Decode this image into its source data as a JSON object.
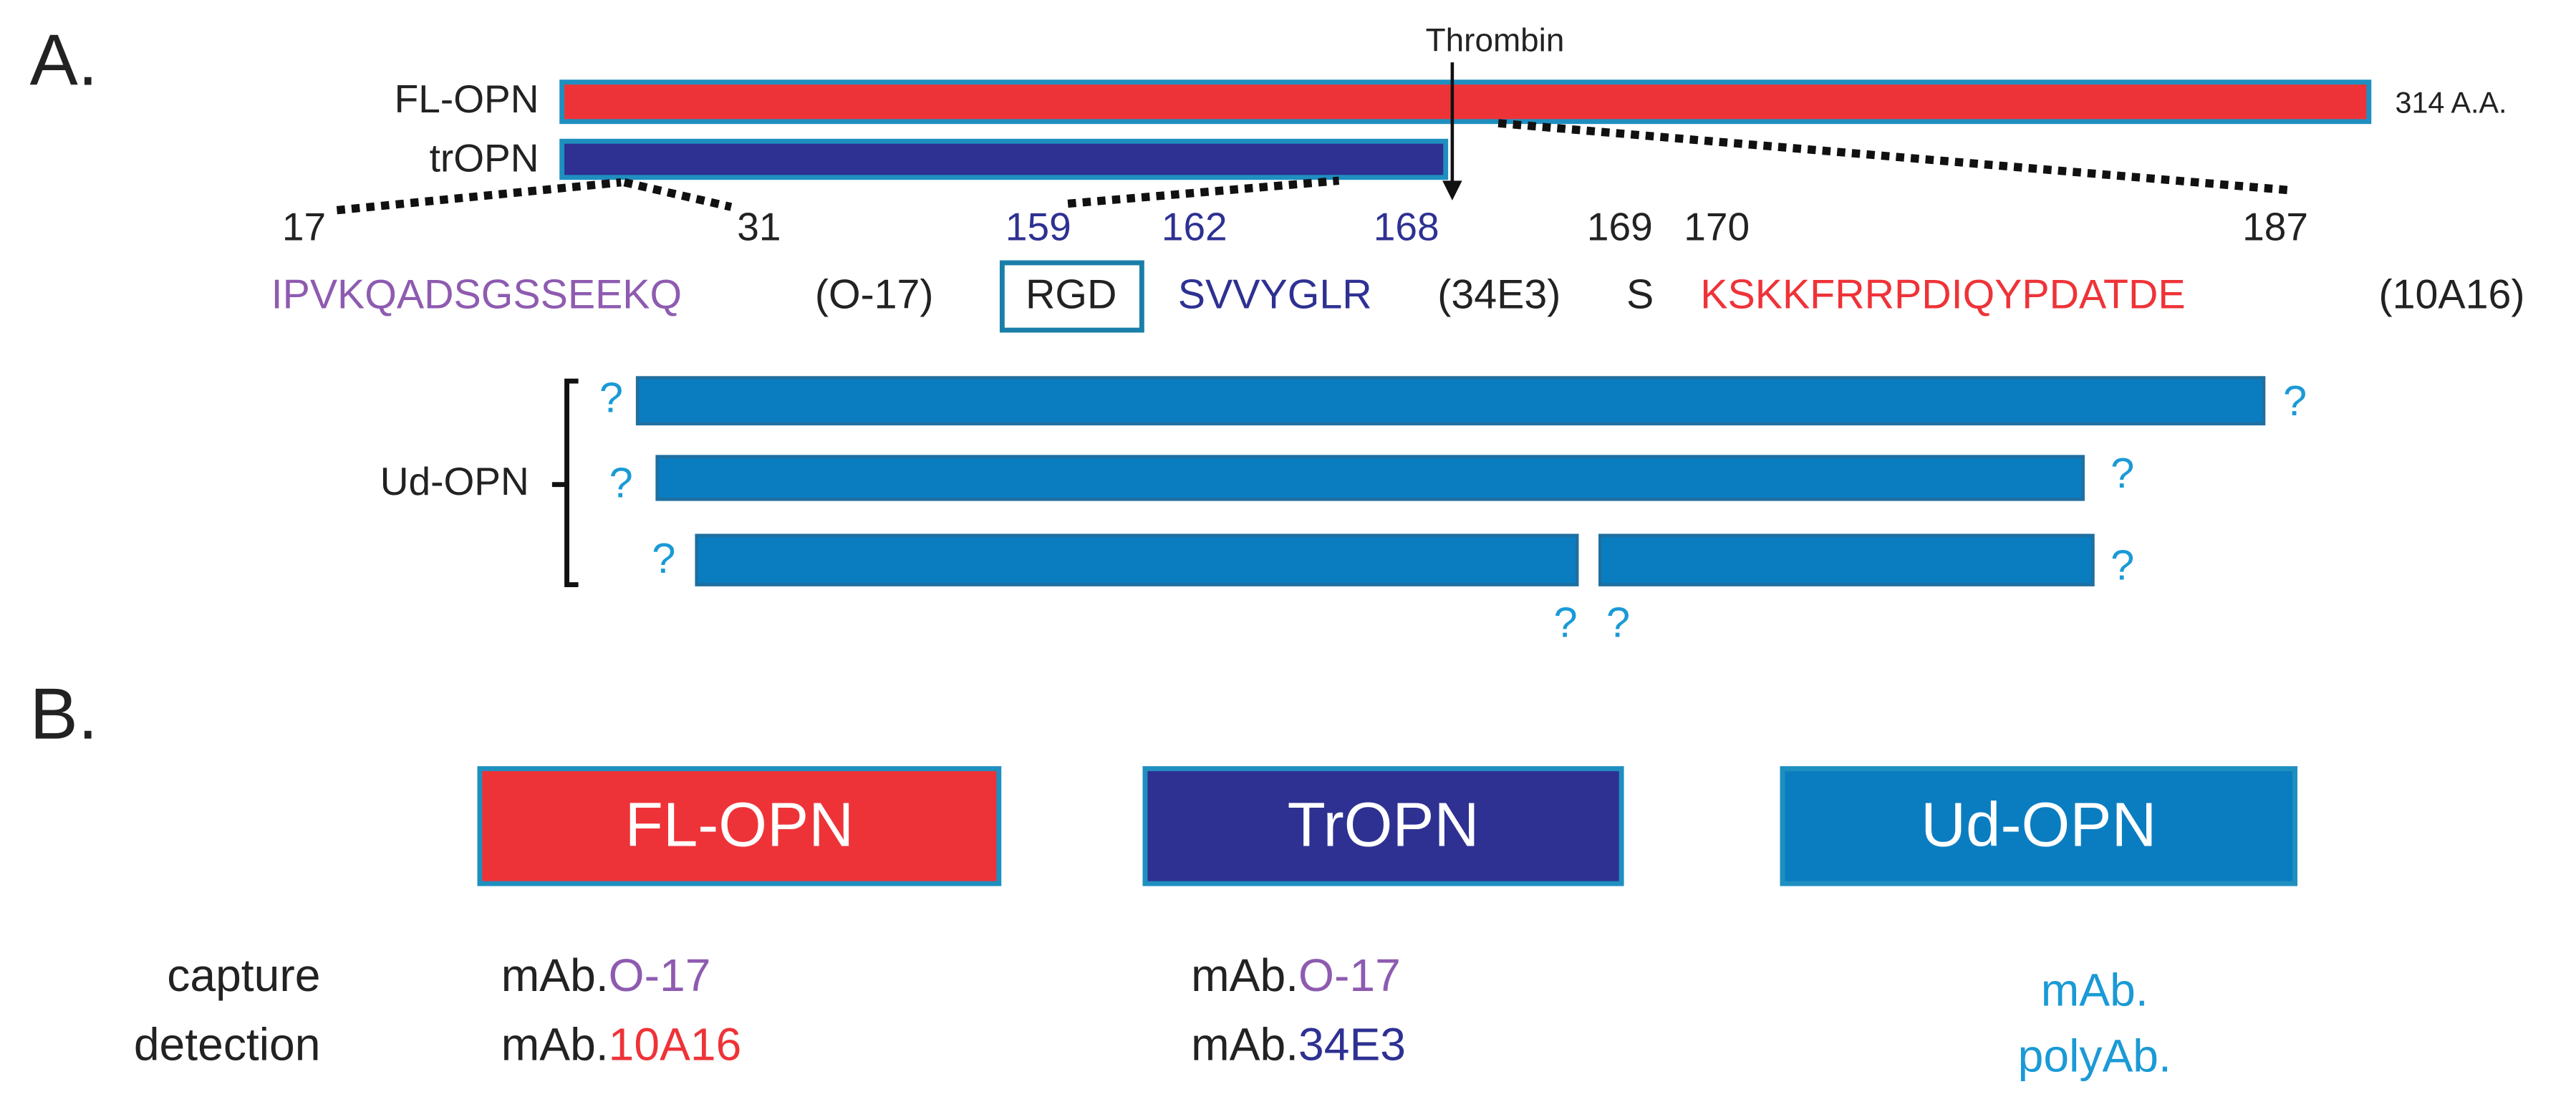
{
  "panel_a": {
    "label": "A.",
    "thrombin": "Thrombin",
    "fl_opn": "FL-OPN",
    "length": "314 A.A.",
    "tr_opn": "trOPN",
    "positions": [
      "17",
      "31",
      "159",
      "162",
      "168",
      "169",
      "170",
      "187"
    ],
    "sequence": [
      "IPVKQADSGSSEEKQ",
      "(O-17)",
      "RGD",
      "SVVYGLR",
      "(34E3)",
      "S",
      "KSKKFRRPDIQYPDATDE",
      "(10A16)"
    ],
    "ud_opn": {
      "label": "Ud-OPN",
      "marks": [
        "?",
        "?",
        "?",
        "?",
        "?",
        "?",
        "?",
        "?"
      ]
    }
  },
  "panel_b": {
    "label": "B.",
    "rows": [
      "capture",
      "detection"
    ],
    "columns": [
      {
        "name": "FL-OPN",
        "capture": [
          "mAb.",
          "O-17"
        ],
        "detection": [
          "mAb.",
          "10A16"
        ]
      },
      {
        "name": "TrOPN",
        "capture": [
          "mAb.",
          "O-17"
        ],
        "detection": [
          "mAb.",
          "34E3"
        ]
      },
      {
        "name": "Ud-OPN",
        "capture": [
          "mAb."
        ],
        "detection": [
          "polyAb."
        ]
      }
    ]
  }
}
